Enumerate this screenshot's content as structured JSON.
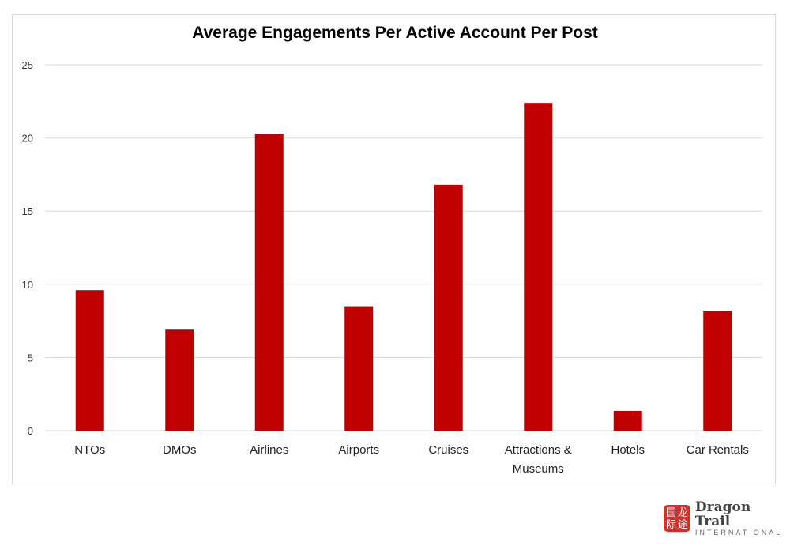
{
  "chart_data": {
    "type": "bar",
    "title": "Average Engagements Per Active Account Per Post",
    "categories": [
      "NTOs",
      "DMOs",
      "Airlines",
      "Airports",
      "Cruises",
      "Attractions & Museums",
      "Hotels",
      "Car Rentals"
    ],
    "category_lines": [
      [
        "NTOs"
      ],
      [
        "DMOs"
      ],
      [
        "Airlines"
      ],
      [
        "Airports"
      ],
      [
        "Cruises"
      ],
      [
        "Attractions &",
        "Museums"
      ],
      [
        "Hotels"
      ],
      [
        "Car Rentals"
      ]
    ],
    "values": [
      9.6,
      6.9,
      20.3,
      8.5,
      16.8,
      22.4,
      1.35,
      8.2
    ],
    "ylim": [
      0,
      25
    ],
    "yticks": [
      0,
      5,
      10,
      15,
      20,
      25
    ],
    "xlabel": "",
    "ylabel": "",
    "grid": true,
    "bar_color": "#c00000"
  },
  "logo": {
    "chars": [
      "国",
      "龙",
      "际",
      "途"
    ],
    "name": "Dragon Trail",
    "sub": "INTERNATIONAL"
  }
}
